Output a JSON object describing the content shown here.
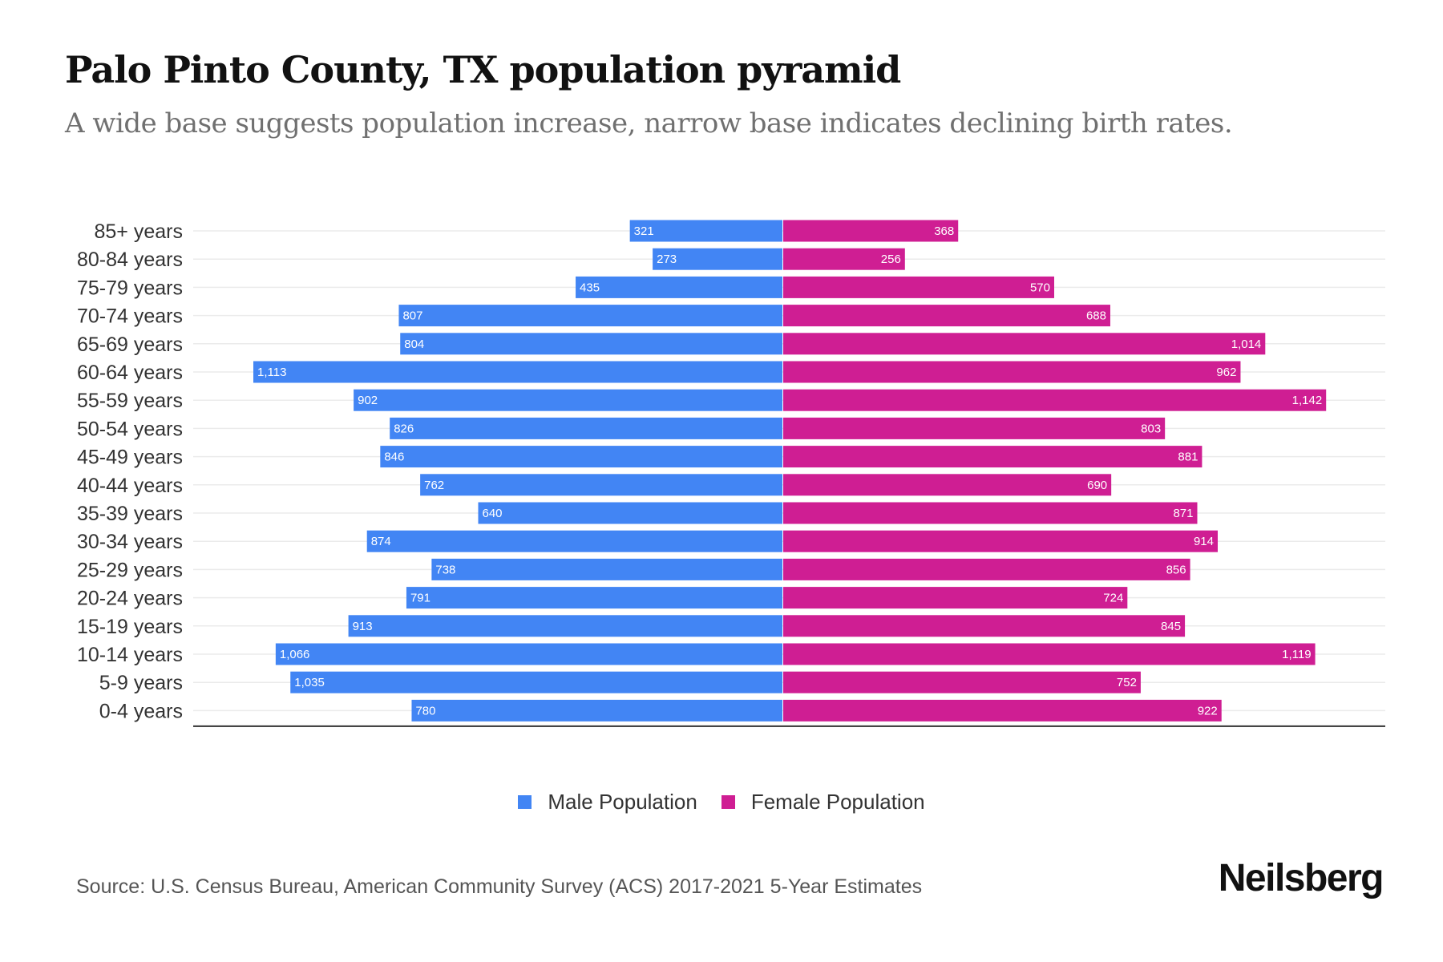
{
  "header": {
    "title": "Palo Pinto County, TX population pyramid",
    "subtitle": "A wide base suggests population increase, narrow base indicates declining birth rates."
  },
  "legend": {
    "male_label": "Male Population",
    "female_label": "Female Population"
  },
  "footer": {
    "source": "Source: U.S. Census Bureau, American Community Survey (ACS) 2017-2021 5-Year Estimates",
    "brand": "Neilsberg"
  },
  "colors": {
    "male": "#4285F4",
    "female": "#CF1E93",
    "grid": "#EBEBEB",
    "axis": "#333333"
  },
  "chart_data": {
    "type": "bar",
    "orientation": "horizontal-pyramid",
    "title": "Palo Pinto County, TX population pyramid",
    "subtitle": "A wide base suggests population increase, narrow base indicates declining birth rates.",
    "xlabel": "",
    "ylabel": "",
    "grid": true,
    "legend_position": "bottom-center",
    "categories": [
      "85+ years",
      "80-84 years",
      "75-79 years",
      "70-74 years",
      "65-69 years",
      "60-64 years",
      "55-59 years",
      "50-54 years",
      "45-49 years",
      "40-44 years",
      "35-39 years",
      "30-34 years",
      "25-29 years",
      "20-24 years",
      "15-19 years",
      "10-14 years",
      "5-9 years",
      "0-4 years"
    ],
    "series": [
      {
        "name": "Male Population",
        "values": [
          321,
          273,
          435,
          807,
          804,
          1113,
          902,
          826,
          846,
          762,
          640,
          874,
          738,
          791,
          913,
          1066,
          1035,
          780
        ],
        "labels": [
          "321",
          "273",
          "435",
          "807",
          "804",
          "1,113",
          "902",
          "826",
          "846",
          "762",
          "640",
          "874",
          "738",
          "791",
          "913",
          "1,066",
          "1,035",
          "780"
        ]
      },
      {
        "name": "Female Population",
        "values": [
          368,
          256,
          570,
          688,
          1014,
          962,
          1142,
          803,
          881,
          690,
          871,
          914,
          856,
          724,
          845,
          1119,
          752,
          922
        ],
        "labels": [
          "368",
          "256",
          "570",
          "688",
          "1,014",
          "962",
          "1,142",
          "803",
          "881",
          "690",
          "871",
          "914",
          "856",
          "724",
          "845",
          "1,119",
          "752",
          "922"
        ]
      }
    ],
    "xlim": [
      -1250,
      1250
    ]
  }
}
